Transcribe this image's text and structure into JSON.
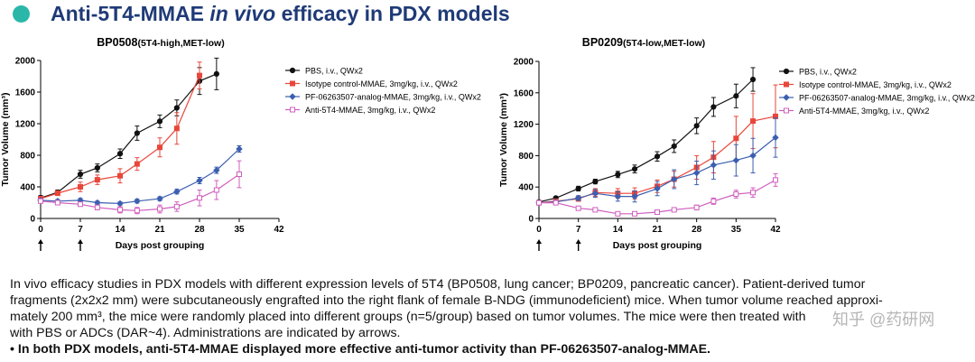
{
  "header": {
    "title_part1": "Anti-5T4-MMAE ",
    "title_italic": "in vivo",
    "title_part2": " efficacy in PDX models"
  },
  "series_styles": [
    {
      "color": "#111111",
      "marker": "circle",
      "open": false
    },
    {
      "color": "#e8463a",
      "marker": "square",
      "open": false
    },
    {
      "color": "#3c5fb0",
      "marker": "diamond",
      "open": false
    },
    {
      "color": "#cf5fbf",
      "marker": "square",
      "open": true
    }
  ],
  "chart_data": [
    {
      "type": "line",
      "title_main": "BP0508",
      "title_sub": "(5T4-high,MET-low)",
      "xlabel": "Days post grouping",
      "ylabel": "Tumor Volume (mm³)",
      "xlim": [
        0,
        42
      ],
      "ylim": [
        0,
        2000
      ],
      "xticks": [
        0,
        7,
        14,
        21,
        28,
        35,
        42
      ],
      "yticks": [
        0,
        400,
        800,
        1200,
        1600,
        2000
      ],
      "dosing_days": [
        0,
        7
      ],
      "series": [
        {
          "name": "PBS, i.v., QWx2",
          "x": [
            0,
            3,
            7,
            10,
            14,
            17,
            21,
            24,
            28,
            31
          ],
          "y": [
            260,
            330,
            560,
            640,
            820,
            1080,
            1230,
            1400,
            1740,
            1830
          ],
          "err": [
            30,
            30,
            50,
            50,
            60,
            90,
            80,
            100,
            170,
            200
          ]
        },
        {
          "name": "Isotype control-MMAE, 3mg/kg, i.v., QWx2",
          "x": [
            0,
            3,
            7,
            10,
            14,
            17,
            21,
            24,
            28
          ],
          "y": [
            250,
            320,
            400,
            490,
            540,
            690,
            900,
            1140,
            1810
          ],
          "err": [
            30,
            30,
            60,
            60,
            90,
            80,
            120,
            200,
            170
          ]
        },
        {
          "name": "PF-06263507-analog-MMAE, 3mg/kg, i.v., QWx2",
          "x": [
            0,
            3,
            7,
            10,
            14,
            17,
            21,
            24,
            28,
            31,
            35
          ],
          "y": [
            230,
            220,
            230,
            200,
            190,
            220,
            250,
            340,
            480,
            610,
            880
          ],
          "err": [
            20,
            20,
            25,
            20,
            20,
            25,
            25,
            30,
            40,
            40,
            40
          ]
        },
        {
          "name": "Anti-5T4-MMAE, 3mg/kg, i.v., QWx2",
          "x": [
            0,
            3,
            7,
            10,
            14,
            17,
            21,
            24,
            28,
            31,
            35
          ],
          "y": [
            220,
            200,
            180,
            140,
            110,
            100,
            120,
            150,
            260,
            360,
            560
          ],
          "err": [
            20,
            20,
            20,
            30,
            40,
            40,
            50,
            60,
            100,
            120,
            170
          ]
        }
      ]
    },
    {
      "type": "line",
      "title_main": "BP0209",
      "title_sub": "(5T4-low,MET-low)",
      "xlabel": "Days post grouping",
      "ylabel": "Tumor Volume (mm³)",
      "xlim": [
        0,
        42
      ],
      "ylim": [
        0,
        2000
      ],
      "xticks": [
        0,
        7,
        14,
        21,
        28,
        35,
        42
      ],
      "yticks": [
        0,
        400,
        800,
        1200,
        1600,
        2000
      ],
      "dosing_days": [
        0,
        7
      ],
      "series": [
        {
          "name": "PBS, i.v., QWx2",
          "x": [
            0,
            3,
            7,
            10,
            14,
            17,
            21,
            24,
            28,
            31,
            35,
            38
          ],
          "y": [
            210,
            260,
            380,
            470,
            560,
            630,
            790,
            920,
            1180,
            1420,
            1560,
            1770
          ],
          "err": [
            20,
            20,
            30,
            30,
            40,
            50,
            60,
            80,
            100,
            120,
            150,
            150
          ]
        },
        {
          "name": "Isotype control-MMAE, 3mg/kg, i.v., QWx2",
          "x": [
            0,
            3,
            7,
            10,
            14,
            17,
            21,
            24,
            28,
            31,
            35,
            38,
            42
          ],
          "y": [
            200,
            220,
            250,
            330,
            320,
            320,
            410,
            500,
            650,
            780,
            1020,
            1240,
            1300
          ],
          "err": [
            20,
            20,
            30,
            50,
            60,
            70,
            80,
            100,
            150,
            200,
            280,
            350,
            400
          ]
        },
        {
          "name": "PF-06263507-analog-MMAE, 3mg/kg, i.v., QWx2",
          "x": [
            0,
            3,
            7,
            10,
            14,
            17,
            21,
            24,
            28,
            31,
            35,
            38,
            42
          ],
          "y": [
            200,
            210,
            260,
            320,
            280,
            280,
            380,
            500,
            580,
            680,
            740,
            800,
            1030
          ],
          "err": [
            20,
            20,
            30,
            50,
            60,
            70,
            90,
            120,
            150,
            180,
            200,
            220,
            250
          ]
        },
        {
          "name": "Anti-5T4-MMAE, 3mg/kg, i.v., QWx2",
          "x": [
            0,
            3,
            7,
            10,
            14,
            17,
            21,
            24,
            28,
            31,
            35,
            38,
            42
          ],
          "y": [
            200,
            200,
            130,
            110,
            60,
            60,
            80,
            110,
            140,
            220,
            310,
            330,
            490
          ],
          "err": [
            20,
            20,
            20,
            20,
            20,
            20,
            20,
            20,
            30,
            40,
            50,
            60,
            80
          ]
        }
      ]
    }
  ],
  "caption": {
    "line1": "In vivo efficacy studies in PDX models with different expression levels of 5T4 (BP0508, lung cancer; BP0209, pancreatic cancer). Patient-derived tumor",
    "line2": "fragments (2x2x2 mm) were subcutaneously engrafted into the right flank of female B-NDG (immunodeficient) mice. When tumor volume reached approxi-",
    "line3": "mately 200 mm³, the mice were randomly placed into different groups (n=5/group) based on tumor volumes. The mice were then treated with",
    "line4": "with PBS or ADCs (DAR~4). Administrations are indicated by arrows.",
    "bullet": "•  In both PDX models, anti-5T4-MMAE displayed more effective anti-tumor activity than PF-06263507-analog-MMAE."
  },
  "watermark": "知乎 @药研网"
}
